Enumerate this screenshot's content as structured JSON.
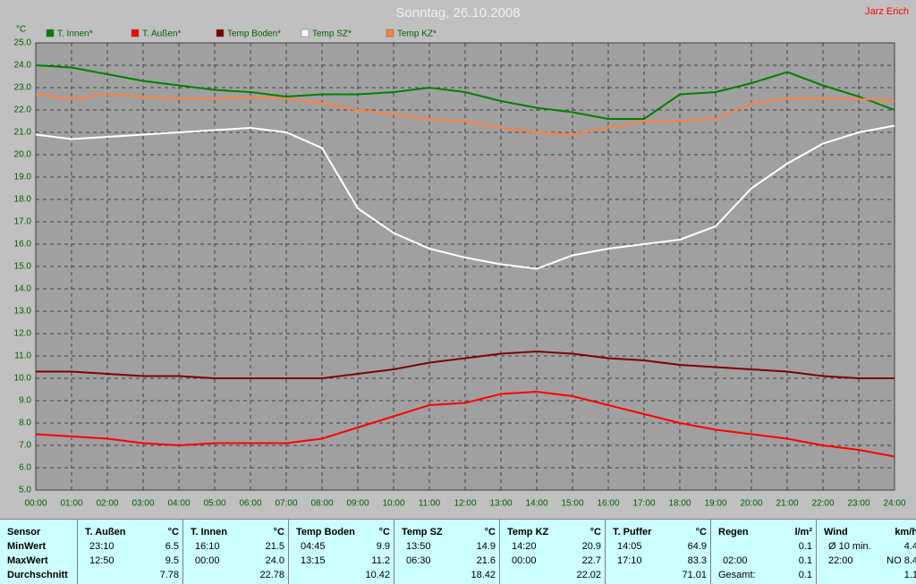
{
  "chart_data": {
    "type": "line",
    "title": "Sonntag, 26.10.2008",
    "author": "Jarz Erich",
    "y_label": "°C",
    "x": [
      0,
      1,
      2,
      3,
      4,
      5,
      6,
      7,
      8,
      9,
      10,
      11,
      12,
      13,
      14,
      15,
      16,
      17,
      18,
      19,
      20,
      21,
      22,
      23,
      24
    ],
    "xlim": [
      0,
      24
    ],
    "xticks": [
      {
        "value": 0,
        "label": "00:00"
      },
      {
        "value": 1,
        "label": "01:00"
      },
      {
        "value": 2,
        "label": "02:00"
      },
      {
        "value": 3,
        "label": "03:00"
      },
      {
        "value": 4,
        "label": "04:00"
      },
      {
        "value": 5,
        "label": "05:00"
      },
      {
        "value": 6,
        "label": "06:00"
      },
      {
        "value": 7,
        "label": "07:00"
      },
      {
        "value": 8,
        "label": "08:00"
      },
      {
        "value": 9,
        "label": "09:00"
      },
      {
        "value": 10,
        "label": "10:00"
      },
      {
        "value": 11,
        "label": "11:00"
      },
      {
        "value": 12,
        "label": "12:00"
      },
      {
        "value": 13,
        "label": "13:00"
      },
      {
        "value": 14,
        "label": "14:00"
      },
      {
        "value": 15,
        "label": "15:00"
      },
      {
        "value": 16,
        "label": "16:00"
      },
      {
        "value": 17,
        "label": "17:00"
      },
      {
        "value": 18,
        "label": "18:00"
      },
      {
        "value": 19,
        "label": "19:00"
      },
      {
        "value": 20,
        "label": "20:00"
      },
      {
        "value": 21,
        "label": "21:00"
      },
      {
        "value": 22,
        "label": "22:00"
      },
      {
        "value": 23,
        "label": "23:00"
      },
      {
        "value": 24,
        "label": "24:00"
      }
    ],
    "ylim": [
      5,
      25
    ],
    "yticks": [
      {
        "value": 5,
        "label": "5.0"
      },
      {
        "value": 6,
        "label": "6.0"
      },
      {
        "value": 7,
        "label": "7.0"
      },
      {
        "value": 8,
        "label": "8.0"
      },
      {
        "value": 9,
        "label": "9.0"
      },
      {
        "value": 10,
        "label": "10.0"
      },
      {
        "value": 11,
        "label": "11.0"
      },
      {
        "value": 12,
        "label": "12.0"
      },
      {
        "value": 13,
        "label": "13.0"
      },
      {
        "value": 14,
        "label": "14.0"
      },
      {
        "value": 15,
        "label": "15.0"
      },
      {
        "value": 16,
        "label": "16.0"
      },
      {
        "value": 17,
        "label": "17.0"
      },
      {
        "value": 18,
        "label": "18.0"
      },
      {
        "value": 19,
        "label": "19.0"
      },
      {
        "value": 20,
        "label": "20.0"
      },
      {
        "value": 21,
        "label": "21.0"
      },
      {
        "value": 22,
        "label": "22.0"
      },
      {
        "value": 23,
        "label": "23.0"
      },
      {
        "value": 24,
        "label": "24.0"
      },
      {
        "value": 25,
        "label": "25.0"
      }
    ],
    "grid": true,
    "series": [
      {
        "name": "T. Innen*",
        "color": "#008000",
        "values": [
          24.0,
          23.9,
          23.6,
          23.3,
          23.1,
          22.9,
          22.8,
          22.6,
          22.7,
          22.7,
          22.8,
          23.0,
          22.8,
          22.4,
          22.1,
          21.9,
          21.6,
          21.6,
          22.7,
          22.8,
          23.2,
          23.7,
          23.1,
          22.6,
          22.0
        ]
      },
      {
        "name": "T. Außen*",
        "color": "#ff0000",
        "values": [
          7.5,
          7.4,
          7.3,
          7.1,
          7.0,
          7.1,
          7.1,
          7.1,
          7.3,
          7.8,
          8.3,
          8.8,
          8.9,
          9.3,
          9.4,
          9.2,
          8.8,
          8.4,
          8.0,
          7.7,
          7.5,
          7.3,
          7.0,
          6.8,
          6.5
        ]
      },
      {
        "name": "Temp Boden*",
        "color": "#800000",
        "values": [
          10.3,
          10.3,
          10.2,
          10.1,
          10.1,
          10.0,
          10.0,
          10.0,
          10.0,
          10.2,
          10.4,
          10.7,
          10.9,
          11.1,
          11.2,
          11.1,
          10.9,
          10.8,
          10.6,
          10.5,
          10.4,
          10.3,
          10.1,
          10.0,
          10.0
        ]
      },
      {
        "name": "Temp SZ*",
        "color": "#ffffff",
        "values": [
          20.9,
          20.7,
          20.8,
          20.9,
          21.0,
          21.1,
          21.2,
          21.0,
          20.3,
          17.6,
          16.5,
          15.8,
          15.4,
          15.1,
          14.9,
          15.5,
          15.8,
          16.0,
          16.2,
          16.8,
          18.5,
          19.6,
          20.5,
          21.0,
          21.3
        ]
      },
      {
        "name": "Temp KZ*",
        "color": "#ff8040",
        "values": [
          22.7,
          22.5,
          22.7,
          22.6,
          22.5,
          22.5,
          22.6,
          22.5,
          22.3,
          22.0,
          21.8,
          21.6,
          21.5,
          21.2,
          21.0,
          20.9,
          21.2,
          21.5,
          21.5,
          21.6,
          22.3,
          22.5,
          22.5,
          22.5,
          22.4
        ]
      }
    ]
  },
  "table": {
    "row_labels": [
      "Sensor",
      "MinWert",
      "MaxWert",
      "Durchschnitt"
    ],
    "groups": [
      {
        "name": "T. Außen",
        "unit": "°C",
        "min_time": "23:10",
        "min": "6.5",
        "max_time": "12:50",
        "max": "9.5",
        "avg": "7.78"
      },
      {
        "name": "T. Innen",
        "unit": "°C",
        "min_time": "16:10",
        "min": "21.5",
        "max_time": "00:00",
        "max": "24.0",
        "avg": "22.78"
      },
      {
        "name": "Temp Boden",
        "unit": "°C",
        "min_time": "04:45",
        "min": "9.9",
        "max_time": "13:15",
        "max": "11.2",
        "avg": "10.42"
      },
      {
        "name": "Temp SZ",
        "unit": "°C",
        "min_time": "13:50",
        "min": "14.9",
        "max_time": "06:30",
        "max": "21.6",
        "avg": "18.42"
      },
      {
        "name": "Temp KZ",
        "unit": "°C",
        "min_time": "14:20",
        "min": "20.9",
        "max_time": "00:00",
        "max": "22.7",
        "avg": "22.02"
      },
      {
        "name": "T. Puffer",
        "unit": "°C",
        "min_time": "14:05",
        "min": "64.9",
        "max_time": "17:10",
        "max": "83.3",
        "avg": "71.01"
      },
      {
        "name": "Regen",
        "unit": "l/m²",
        "min": "0.1",
        "max_time": "02:00",
        "max": "0.1",
        "avg_label": "Gesamt:",
        "avg": "0.1"
      },
      {
        "name": "Wind",
        "unit": "km/h",
        "min_time": "Ø 10 min.",
        "min": "4.4",
        "max_time": "22:00",
        "max": "NO 8.4",
        "avg": "1.1"
      }
    ]
  }
}
